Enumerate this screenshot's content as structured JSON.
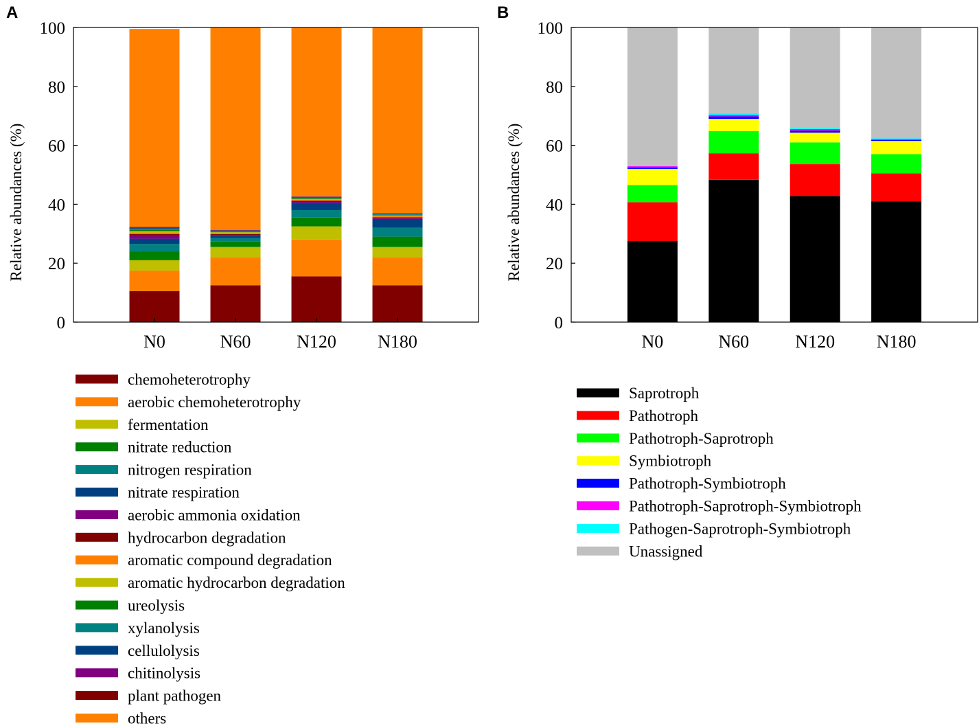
{
  "chart_data": [
    {
      "type": "bar",
      "stacked": true,
      "panel_label": "A",
      "title": "",
      "xlabel": "",
      "ylabel": "Relative abundances (%)",
      "ylim": [
        0,
        100
      ],
      "yticks": [
        0,
        20,
        40,
        60,
        80,
        100
      ],
      "grid": false,
      "legend_position": "below",
      "categories": [
        "N0",
        "N60",
        "N120",
        "N180"
      ],
      "series": [
        {
          "name": "chemoheterotrophy",
          "color": "#800000",
          "values": [
            10.5,
            12.5,
            15.5,
            12.5
          ]
        },
        {
          "name": "aerobic chemoheterotrophy",
          "color": "#FF8000",
          "values": [
            7.0,
            9.5,
            12.5,
            9.5
          ]
        },
        {
          "name": "fermentation",
          "color": "#BFBF00",
          "values": [
            3.5,
            3.5,
            4.5,
            3.5
          ]
        },
        {
          "name": "nitrate reduction",
          "color": "#008000",
          "values": [
            3.0,
            1.8,
            3.0,
            3.5
          ]
        },
        {
          "name": "nitrogen respiration",
          "color": "#008080",
          "values": [
            2.5,
            1.2,
            2.5,
            3.0
          ]
        },
        {
          "name": "nitrate respiration",
          "color": "#004080",
          "values": [
            1.8,
            0.8,
            2.5,
            3.0
          ]
        },
        {
          "name": "aerobic ammonia oxidation",
          "color": "#800080",
          "values": [
            1.0,
            0.3,
            0.3,
            0.3
          ]
        },
        {
          "name": "hydrocarbon degradation",
          "color": "#800000",
          "values": [
            0.6,
            0.3,
            0.4,
            0.3
          ]
        },
        {
          "name": "aromatic compound degradation",
          "color": "#FF8000",
          "values": [
            0.5,
            0.3,
            0.3,
            0.3
          ]
        },
        {
          "name": "aromatic hydrocarbon degradation",
          "color": "#BFBF00",
          "values": [
            0.5,
            0.3,
            0.3,
            0.3
          ]
        },
        {
          "name": "ureolysis",
          "color": "#008000",
          "values": [
            0.4,
            0.2,
            0.3,
            0.2
          ]
        },
        {
          "name": "xylanolysis",
          "color": "#008080",
          "values": [
            0.3,
            0.2,
            0.2,
            0.2
          ]
        },
        {
          "name": "cellulolysis",
          "color": "#004080",
          "values": [
            0.3,
            0.2,
            0.2,
            0.2
          ]
        },
        {
          "name": "chitinolysis",
          "color": "#800080",
          "values": [
            0.2,
            0.1,
            0.1,
            0.1
          ]
        },
        {
          "name": "plant pathogen",
          "color": "#800000",
          "values": [
            0.2,
            0.1,
            0.1,
            0.1
          ]
        },
        {
          "name": "others",
          "color": "#FF8000",
          "values": [
            67.2,
            68.7,
            57.3,
            63.0
          ]
        }
      ]
    },
    {
      "type": "bar",
      "stacked": true,
      "panel_label": "B",
      "title": "",
      "xlabel": "",
      "ylabel": "Relative abundances (%)",
      "ylim": [
        0,
        100
      ],
      "yticks": [
        0,
        20,
        40,
        60,
        80,
        100
      ],
      "grid": false,
      "legend_position": "below",
      "categories": [
        "N0",
        "N60",
        "N120",
        "N180"
      ],
      "series": [
        {
          "name": "Saprotroph",
          "color": "#000000",
          "values": [
            27.5,
            48.3,
            42.8,
            41.0
          ]
        },
        {
          "name": "Pathotroph",
          "color": "#FF0000",
          "values": [
            13.2,
            9.0,
            10.8,
            9.5
          ]
        },
        {
          "name": "Pathotroph-Saprotroph",
          "color": "#00FF00",
          "values": [
            5.8,
            7.5,
            7.4,
            6.5
          ]
        },
        {
          "name": "Symbiotroph",
          "color": "#FFFF00",
          "values": [
            5.5,
            4.2,
            3.3,
            4.5
          ]
        },
        {
          "name": "Pathotroph-Symbiotroph",
          "color": "#0000FF",
          "values": [
            0.5,
            0.8,
            0.7,
            0.3
          ]
        },
        {
          "name": "Pathotroph-Saprotroph-Symbiotroph",
          "color": "#FF00FF",
          "values": [
            0.4,
            0.5,
            0.5,
            0.4
          ]
        },
        {
          "name": "Pathogen-Saprotroph-Symbiotroph",
          "color": "#00FFFF",
          "values": [
            0.2,
            0.6,
            0.3,
            0.2
          ]
        },
        {
          "name": "Unassigned",
          "color": "#C0C0C0",
          "values": [
            46.9,
            29.1,
            34.2,
            37.6
          ]
        }
      ]
    }
  ]
}
